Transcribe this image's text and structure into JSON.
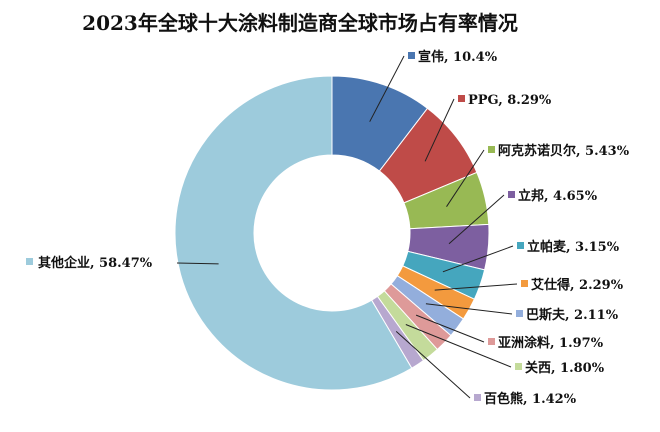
{
  "chart_data": {
    "type": "pie",
    "variant": "donut",
    "title": "2023年全球十大涂料制造商全球市场占有率情况",
    "unit": "%",
    "slices": [
      {
        "name": "宣伟",
        "value": 10.4,
        "label": "宣伟, 10.4%",
        "color": "#4A76B0"
      },
      {
        "name": "PPG",
        "value": 8.29,
        "label": "PPG, 8.29%",
        "color": "#BF4B48"
      },
      {
        "name": "阿克苏诺贝尔",
        "value": 5.43,
        "label": "阿克苏诺贝尔, 5.43%",
        "color": "#98B954"
      },
      {
        "name": "立邦",
        "value": 4.65,
        "label": "立邦, 4.65%",
        "color": "#7D5FA0"
      },
      {
        "name": "立帕麦",
        "value": 3.15,
        "label": "立帕麦, 3.15%",
        "color": "#45A6BE"
      },
      {
        "name": "艾仕得",
        "value": 2.29,
        "label": "艾仕得, 2.29%",
        "color": "#F39A3E"
      },
      {
        "name": "巴斯夫",
        "value": 2.11,
        "label": "巴斯夫, 2.11%",
        "color": "#93AEDC"
      },
      {
        "name": "亚洲涂料",
        "value": 1.97,
        "label": "亚洲涂料, 1.97%",
        "color": "#DE9A99"
      },
      {
        "name": "关西",
        "value": 1.8,
        "label": "关西, 1.80%",
        "color": "#C4DB9B"
      },
      {
        "name": "百色熊",
        "value": 1.42,
        "label": "百色熊, 1.42%",
        "color": "#B7A8CF"
      },
      {
        "name": "其他企业",
        "value": 58.47,
        "label": "其他企业, 58.47%",
        "color": "#9DCBDC"
      }
    ],
    "start_angle_deg": 0,
    "direction": "clockwise",
    "legend": "none (leader-line labels)"
  }
}
